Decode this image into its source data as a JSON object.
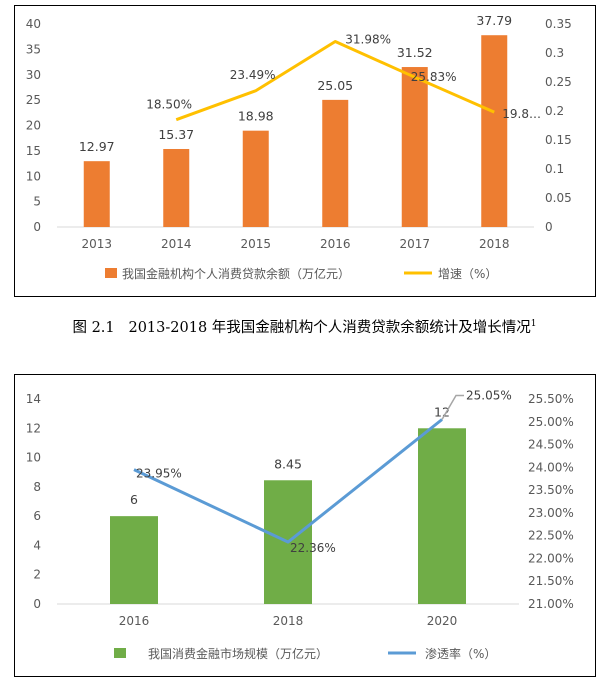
{
  "chart_data": [
    {
      "type": "bar+line",
      "title": "",
      "categories": [
        "2013",
        "2014",
        "2015",
        "2016",
        "2017",
        "2018"
      ],
      "series": [
        {
          "name": "我国金融机构个人消费贷款余额（万亿元）",
          "type": "bar",
          "axis": "left",
          "values": [
            12.97,
            15.37,
            18.98,
            25.05,
            31.52,
            37.79
          ],
          "labels": [
            "12.97",
            "15.37",
            "18.98",
            "25.05",
            "31.52",
            "37.79"
          ]
        },
        {
          "name": "增速（%）",
          "type": "line",
          "axis": "right",
          "values": [
            null,
            0.185,
            0.2349,
            0.3198,
            0.2583,
            0.198
          ],
          "labels": [
            "",
            "18.50%",
            "23.49%",
            "31.98%",
            "25.83%",
            "19.8…"
          ]
        }
      ],
      "left_axis": {
        "min": 0,
        "max": 40,
        "step": 5,
        "ticks": [
          "0",
          "5",
          "10",
          "15",
          "20",
          "25",
          "30",
          "35",
          "40"
        ]
      },
      "right_axis": {
        "min": 0,
        "max": 0.35,
        "step": 0.05,
        "ticks": [
          "0",
          "0.05",
          "0.1",
          "0.15",
          "0.2",
          "0.25",
          "0.3",
          "0.35"
        ]
      },
      "grid": false,
      "legend": "bottom",
      "colors": {
        "bar": "#ED7D31",
        "line": "#FFC000",
        "label": "#404040",
        "axis": "#595959"
      }
    },
    {
      "type": "bar+line",
      "title": "",
      "categories": [
        "2016",
        "2018",
        "2020"
      ],
      "series": [
        {
          "name": "我国消费金融市场规模（万亿元）",
          "type": "bar",
          "axis": "left",
          "values": [
            6,
            8.45,
            12
          ],
          "labels": [
            "6",
            "8.45",
            "12"
          ]
        },
        {
          "name": "渗透率（%）",
          "type": "line",
          "axis": "right",
          "values": [
            23.95,
            22.36,
            25.05
          ],
          "labels": [
            "23.95%",
            "22.36%",
            "25.05%"
          ]
        }
      ],
      "left_axis": {
        "min": 0,
        "max": 14,
        "step": 2,
        "ticks": [
          "0",
          "2",
          "4",
          "6",
          "8",
          "10",
          "12",
          "14"
        ]
      },
      "right_axis": {
        "min": 21.0,
        "max": 25.5,
        "step": 0.5,
        "ticks": [
          "21.00%",
          "21.50%",
          "22.00%",
          "22.50%",
          "23.00%",
          "23.50%",
          "24.00%",
          "24.50%",
          "25.00%",
          "25.50%"
        ]
      },
      "grid": false,
      "legend": "bottom",
      "colors": {
        "bar": "#70AD47",
        "line": "#5B9BD5",
        "label": "#404040",
        "axis": "#595959"
      }
    }
  ],
  "caption": {
    "label": "图 2.1",
    "text": "2013-2018 年我国金融机构个人消费贷款余额统计及增长情况",
    "footnote": "1"
  }
}
